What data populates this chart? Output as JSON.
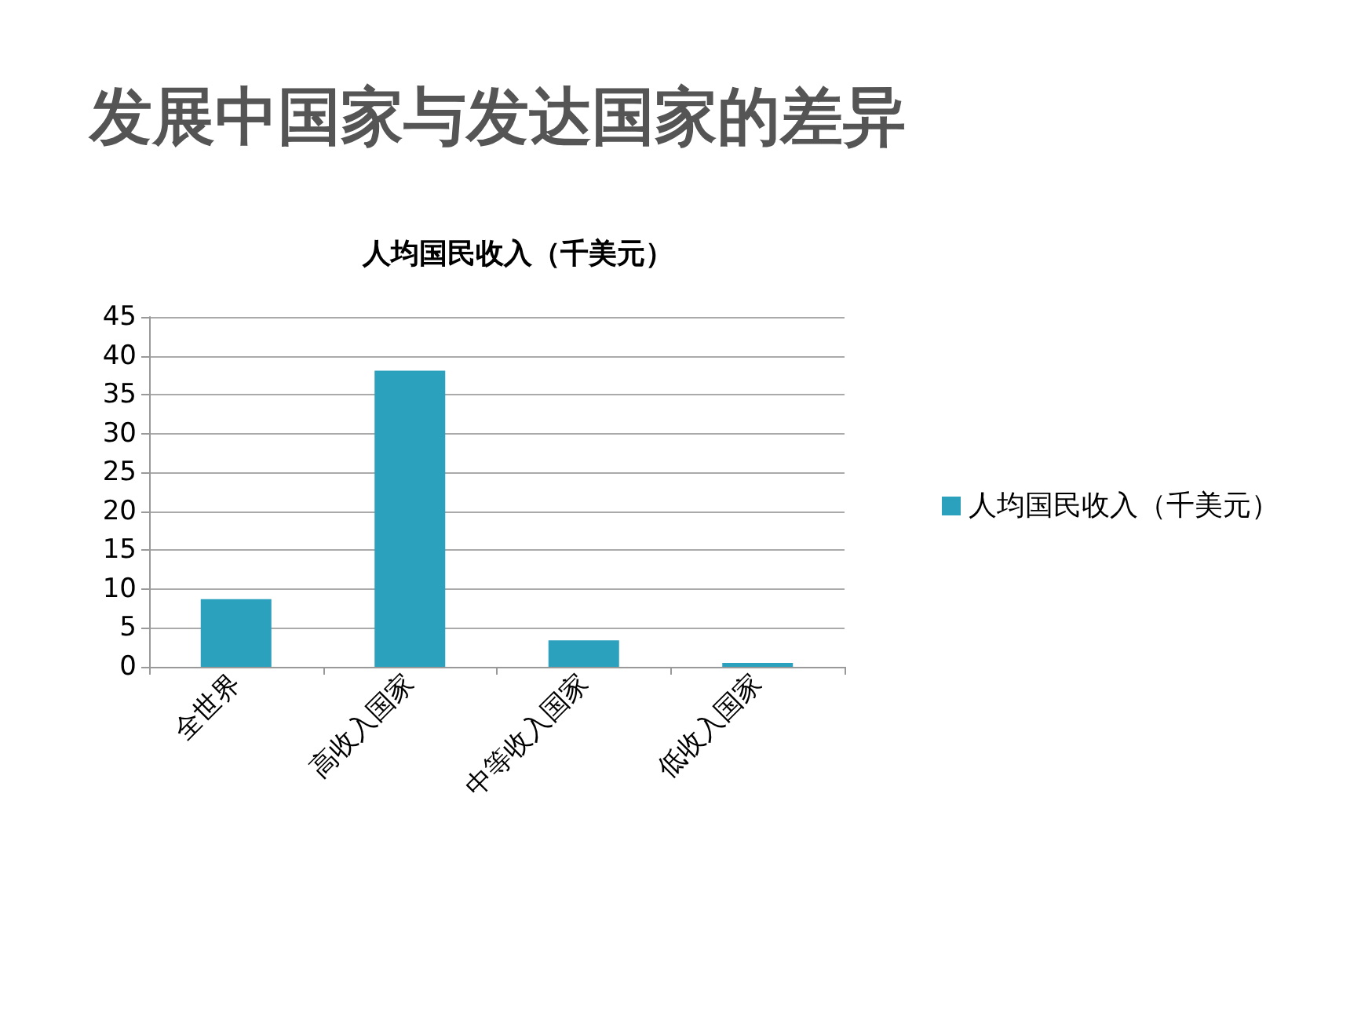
{
  "chart_data": {
    "type": "bar",
    "title": "发展中国家与发达国家的差异",
    "subtitle": "人均国民收入（千美元）",
    "categories": [
      "全世界",
      "高收入国家",
      "中等收入国家",
      "低收入国家"
    ],
    "series": [
      {
        "name": "人均国民收入（千美元）",
        "color": "#2ca1be",
        "values": [
          8.7,
          38.1,
          3.4,
          0.5
        ]
      }
    ],
    "ylim": [
      0,
      45
    ],
    "yticks": [
      0,
      5,
      10,
      15,
      20,
      25,
      30,
      35,
      40,
      45
    ],
    "grid": "y",
    "legend": "right"
  }
}
